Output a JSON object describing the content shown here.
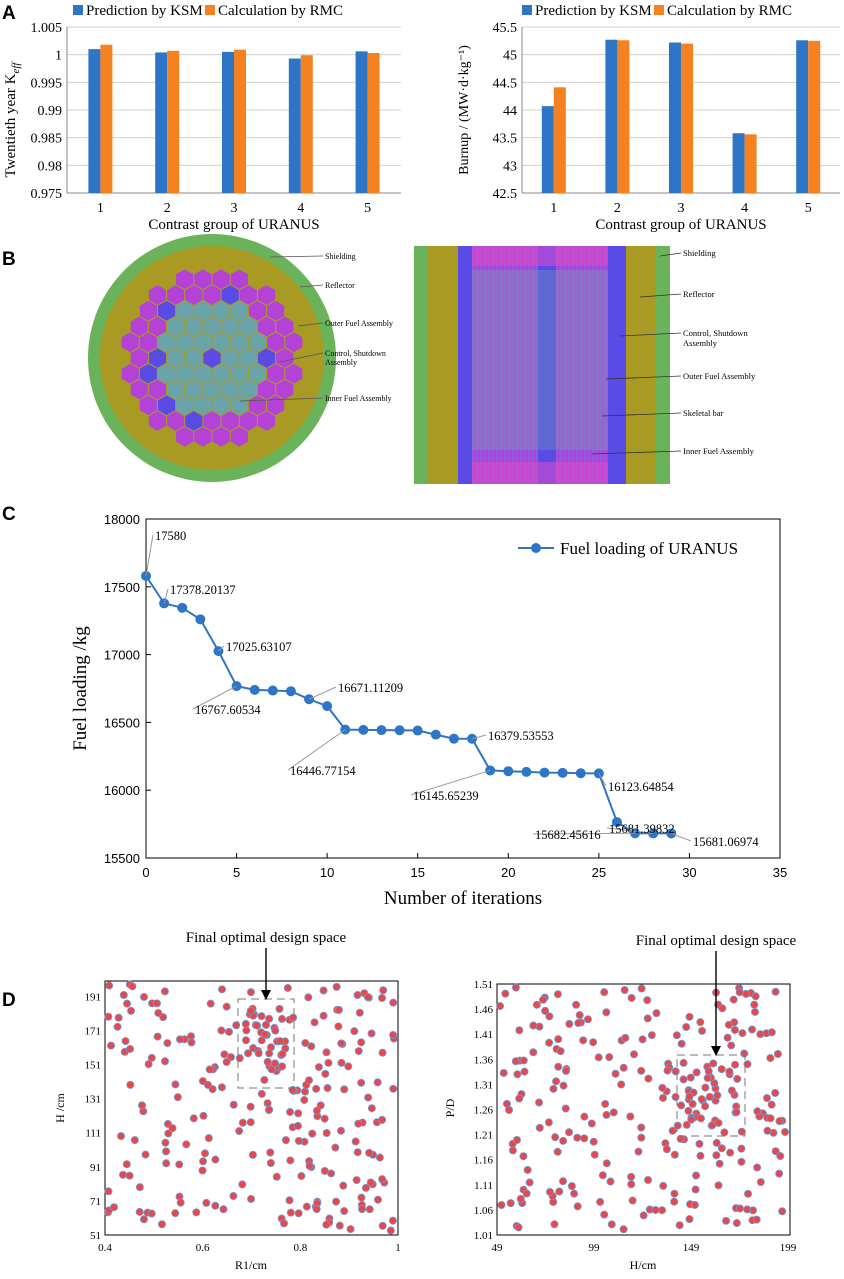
{
  "panels": {
    "a": "A",
    "b": "B",
    "c": "C",
    "d": "D"
  },
  "colors": {
    "ksm": "#2e75c6",
    "rmc": "#f58220",
    "line": "#2e75c6",
    "scatter_fill": "#e8474c",
    "scatter_edge": "#6b9fd4",
    "shielding": "#6bb35a",
    "reflector": "#a89a22",
    "outer_fuel": "#b542d6",
    "inner_fuel": "#6aa3a8",
    "control": "#5a4ae6"
  },
  "diagram": {
    "left_labels": [
      "Shielding",
      "Reflector",
      "Outer Fuel Assembly",
      "Control, Shutdown\nAssembly",
      "Inner Fuel Assembly"
    ],
    "right_labels": [
      "Shielding",
      "Reflector",
      "Control, Shutdown\nAssembly",
      "Outer Fuel Assembly",
      "Skeletal bar",
      "Inner Fuel Assembly"
    ]
  },
  "chart_data": [
    {
      "id": "A1",
      "type": "bar",
      "categories": [
        "1",
        "2",
        "3",
        "4",
        "5"
      ],
      "series": [
        {
          "name": "Prediction by KSM",
          "values": [
            1.001,
            1.0004,
            1.0005,
            0.9993,
            1.0006
          ]
        },
        {
          "name": "Calculation by RMC",
          "values": [
            1.0018,
            1.0007,
            1.0009,
            0.9999,
            1.0003
          ]
        }
      ],
      "xlabel": "Contrast group of URANUS",
      "ylabel_main": "Twentieth year K",
      "ylabel_sub": "eff",
      "ylim": [
        0.975,
        1.005
      ],
      "yticks": [
        "0.975",
        "0.98",
        "0.985",
        "0.99",
        "0.995",
        "1",
        "1.005"
      ],
      "legend": "top"
    },
    {
      "id": "A2",
      "type": "bar",
      "categories": [
        "1",
        "2",
        "3",
        "4",
        "5"
      ],
      "series": [
        {
          "name": "Prediction by KSM",
          "values": [
            44.07,
            45.27,
            45.22,
            43.58,
            45.26
          ]
        },
        {
          "name": "Calculation by RMC",
          "values": [
            44.41,
            45.26,
            45.2,
            43.56,
            45.25
          ]
        }
      ],
      "xlabel": "Contrast group of URANUS",
      "ylabel": "Burnup / (MW·d·kg⁻¹)",
      "ylim": [
        42.5,
        45.5
      ],
      "yticks": [
        "42.5",
        "43",
        "43.5",
        "44",
        "44.5",
        "45",
        "45.5"
      ],
      "legend": "top"
    },
    {
      "id": "C",
      "type": "line",
      "series_name": "Fuel loading of URANUS",
      "x": [
        0,
        1,
        2,
        3,
        4,
        5,
        6,
        7,
        8,
        9,
        10,
        11,
        12,
        13,
        14,
        15,
        16,
        17,
        18,
        19,
        20,
        21,
        22,
        23,
        24,
        25,
        26,
        27,
        28,
        29
      ],
      "y": [
        17580,
        17378.20137,
        17345,
        17260,
        17025.63107,
        16767.60534,
        16740,
        16735,
        16730,
        16671.11209,
        16620,
        16446.77154,
        16445,
        16443,
        16442,
        16440,
        16410,
        16380,
        16379.53553,
        16145.65239,
        16140,
        16135,
        16130,
        16128,
        16125,
        16123.64854,
        15765,
        15682.45616,
        15681.39832,
        15681.06974
      ],
      "annotations": [
        "17580",
        "17378.20137",
        "17025.63107",
        "16767.60534",
        "16671.11209",
        "16446.77154",
        "16379.53553",
        "16145.65239",
        "16123.64854",
        "15681.39832",
        "15682.45616",
        "15681.06974"
      ],
      "xlabel": "Number of iterations",
      "ylabel": "Fuel loading /kg",
      "xlim": [
        0,
        35
      ],
      "ylim": [
        15500,
        18000
      ],
      "xticks": [
        "0",
        "5",
        "10",
        "15",
        "20",
        "25",
        "30",
        "35"
      ],
      "yticks": [
        "15500",
        "16000",
        "16500",
        "17000",
        "17500",
        "18000"
      ]
    },
    {
      "id": "D1",
      "type": "scatter",
      "title": "Final optimal design space",
      "xlabel": "R1/cm",
      "ylabel": "H /cm",
      "xlim": [
        0.4,
        1.0
      ],
      "ylim": [
        51,
        200
      ],
      "xticks": [
        "0.4",
        "0.6",
        "0.8",
        "1"
      ],
      "yticks": [
        "51",
        "71",
        "91",
        "111",
        "131",
        "151",
        "171",
        "191"
      ]
    },
    {
      "id": "D2",
      "type": "scatter",
      "title": "Final optimal design space",
      "xlabel": "H/cm",
      "ylabel": "P/D",
      "xlim": [
        49,
        200
      ],
      "ylim": [
        1.01,
        1.51
      ],
      "xticks": [
        "49",
        "99",
        "149",
        "199"
      ],
      "yticks": [
        "1.01",
        "1.06",
        "1.11",
        "1.16",
        "1.21",
        "1.26",
        "1.31",
        "1.36",
        "1.41",
        "1.46",
        "1.51"
      ]
    }
  ]
}
